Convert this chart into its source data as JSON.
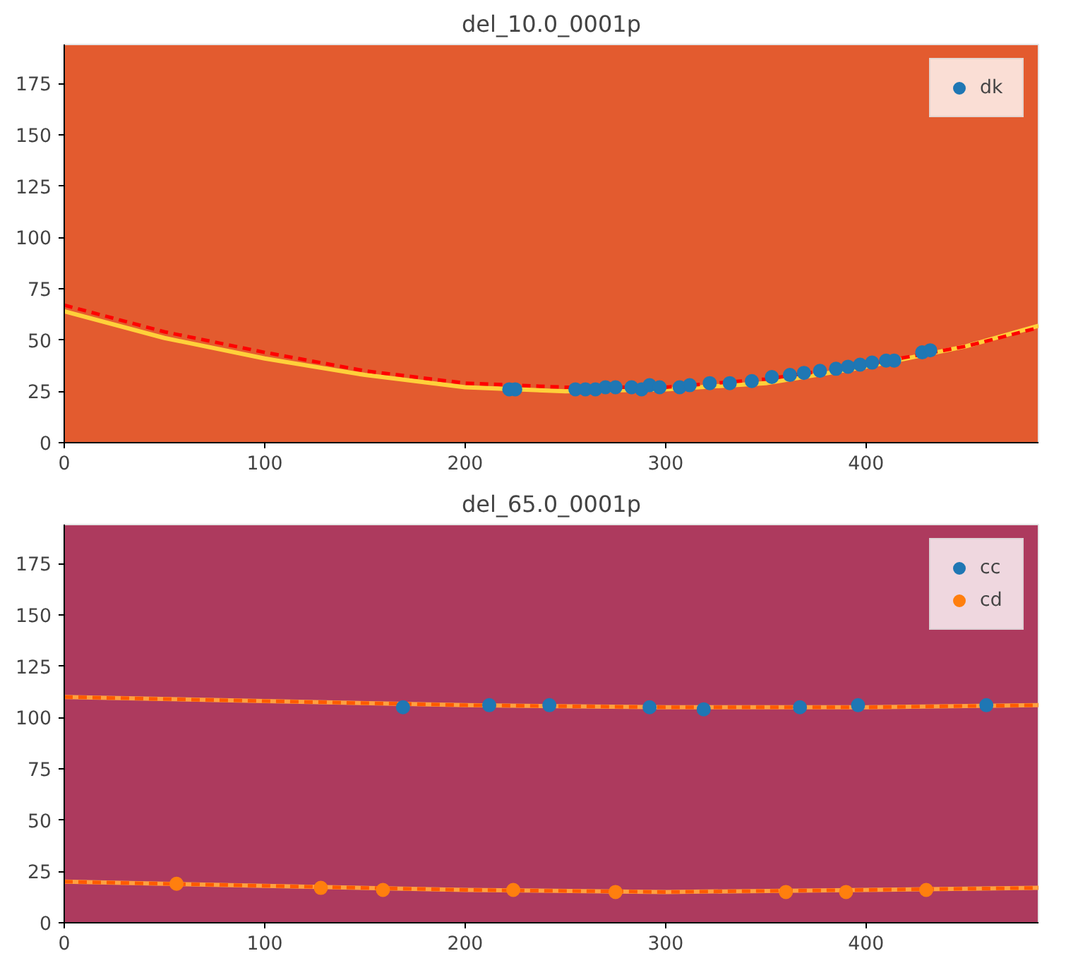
{
  "chart_data": [
    {
      "type": "scatter",
      "title": "del_10.0_0001p",
      "xlim": [
        0,
        486
      ],
      "ylim": [
        0,
        194
      ],
      "xticks": [
        0,
        100,
        200,
        300,
        400
      ],
      "yticks": [
        0,
        25,
        50,
        75,
        100,
        125,
        150,
        175
      ],
      "grid": false,
      "legend": "top right",
      "series": [
        {
          "type": "line",
          "marker": "none",
          "color": "#ffd03a",
          "line_style": "solid",
          "x": [
            0,
            50,
            100,
            150,
            200,
            250,
            300,
            350,
            400,
            450,
            486
          ],
          "values": [
            64,
            51,
            41,
            33,
            27,
            25,
            26,
            29,
            37,
            47,
            57
          ]
        },
        {
          "type": "line",
          "marker": "none",
          "color": "#ff0000",
          "line_style": "dashed",
          "x": [
            0,
            50,
            100,
            150,
            200,
            250,
            300,
            350,
            400,
            450,
            486
          ],
          "values": [
            67,
            54,
            44,
            35,
            29,
            27,
            27,
            31,
            38,
            47,
            56
          ]
        },
        {
          "marker": "circle",
          "name": "dk",
          "color": "#1f77b4",
          "x": [
            222,
            225,
            255,
            260,
            265,
            270,
            275,
            283,
            288,
            292,
            297,
            307,
            312,
            322,
            332,
            343,
            353,
            362,
            369,
            377,
            385,
            391,
            397,
            403,
            410,
            414,
            428,
            432
          ],
          "values": [
            26,
            26,
            26,
            26,
            26,
            27,
            27,
            27,
            26,
            28,
            27,
            27,
            28,
            29,
            29,
            30,
            32,
            33,
            34,
            35,
            36,
            37,
            38,
            39,
            40,
            40,
            44,
            45
          ]
        }
      ]
    },
    {
      "type": "scatter",
      "title": "del_65.0_0001p",
      "xlim": [
        0,
        486
      ],
      "ylim": [
        0,
        194
      ],
      "xticks": [
        0,
        100,
        200,
        300,
        400
      ],
      "yticks": [
        0,
        25,
        50,
        75,
        100,
        125,
        150,
        175
      ],
      "grid": false,
      "legend": "top right",
      "series": [
        {
          "type": "line",
          "marker": "none",
          "color": "#ffa040",
          "line_style": "solid",
          "x": [
            0,
            100,
            200,
            300,
            400,
            486
          ],
          "values": [
            110,
            108,
            106,
            105,
            105,
            106
          ]
        },
        {
          "type": "line",
          "marker": "none",
          "color": "#ff5a00",
          "line_style": "dashed",
          "x": [
            0,
            100,
            200,
            300,
            400,
            486
          ],
          "values": [
            110,
            108,
            106,
            105,
            105,
            106
          ]
        },
        {
          "type": "line",
          "marker": "none",
          "color": "#ffa040",
          "line_style": "solid",
          "x": [
            0,
            100,
            200,
            300,
            400,
            486
          ],
          "values": [
            20,
            18,
            16,
            15,
            16,
            17
          ]
        },
        {
          "type": "line",
          "marker": "none",
          "color": "#ff5a00",
          "line_style": "dashed",
          "x": [
            0,
            100,
            200,
            300,
            400,
            486
          ],
          "values": [
            20,
            18,
            16,
            15,
            16,
            17
          ]
        },
        {
          "marker": "circle",
          "name": "cc",
          "color": "#1f77b4",
          "x": [
            169,
            212,
            242,
            292,
            319,
            367,
            396,
            460
          ],
          "values": [
            105,
            106,
            106,
            105,
            104,
            105,
            106,
            106
          ]
        },
        {
          "marker": "circle",
          "name": "cd",
          "color": "#ff7f0e",
          "x": [
            56,
            128,
            159,
            224,
            275,
            360,
            390,
            430
          ],
          "values": [
            19,
            17,
            16,
            16,
            15,
            15,
            15,
            16
          ]
        }
      ]
    }
  ]
}
